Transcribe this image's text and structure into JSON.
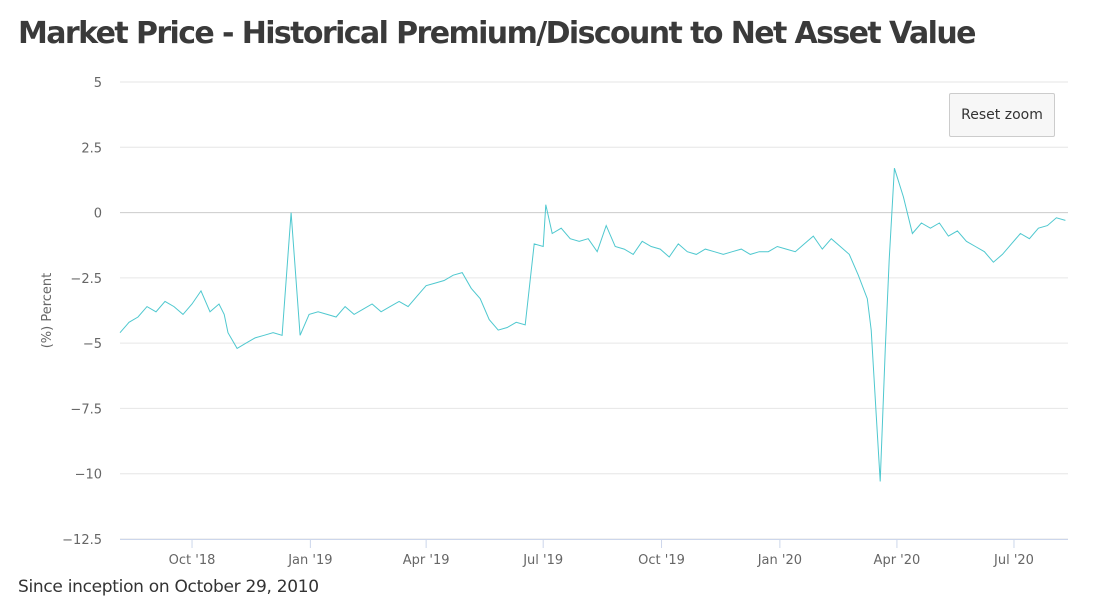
{
  "title": "Market Price - Historical Premium/Discount to Net Asset Value",
  "footnote": "Since inception on October 29, 2010",
  "reset_zoom_label": "Reset zoom",
  "colors": {
    "series": "#4fc8cf",
    "grid": "#e6e6e6",
    "zero_line": "#cccccc"
  },
  "chart_data": {
    "type": "line",
    "ylabel": "(%) Percent",
    "ylim": [
      -12.5,
      5
    ],
    "yticks": [
      5,
      2.5,
      0,
      -2.5,
      -5,
      -7.5,
      -10,
      -12.5
    ],
    "ytick_labels": [
      "5",
      "2.5",
      "0",
      "−2.5",
      "−5",
      "−7.5",
      "−10",
      "−12.5"
    ],
    "xlim": [
      "2018-08-06",
      "2020-08-12"
    ],
    "xticks": [
      "2018-10-01",
      "2019-01-01",
      "2019-04-01",
      "2019-07-01",
      "2019-10-01",
      "2020-01-01",
      "2020-04-01",
      "2020-07-01"
    ],
    "xtick_labels": [
      "Oct '18",
      "Jan '19",
      "Apr '19",
      "Jul '19",
      "Oct '19",
      "Jan '20",
      "Apr '20",
      "Jul '20"
    ],
    "grid": true,
    "legend": "none",
    "series": [
      {
        "x": [
          "2018-08-06",
          "2018-08-13",
          "2018-08-20",
          "2018-08-27",
          "2018-09-03",
          "2018-09-10",
          "2018-09-17",
          "2018-09-24",
          "2018-10-01",
          "2018-10-08",
          "2018-10-15",
          "2018-10-22",
          "2018-10-26",
          "2018-10-29",
          "2018-11-05",
          "2018-11-12",
          "2018-11-19",
          "2018-11-26",
          "2018-12-03",
          "2018-12-10",
          "2018-12-17",
          "2018-12-24",
          "2018-12-31",
          "2019-01-07",
          "2019-01-14",
          "2019-01-21",
          "2019-01-28",
          "2019-02-04",
          "2019-02-11",
          "2019-02-18",
          "2019-02-25",
          "2019-03-04",
          "2019-03-11",
          "2019-03-18",
          "2019-03-25",
          "2019-04-01",
          "2019-04-08",
          "2019-04-15",
          "2019-04-22",
          "2019-04-29",
          "2019-05-06",
          "2019-05-13",
          "2019-05-20",
          "2019-05-27",
          "2019-06-03",
          "2019-06-10",
          "2019-06-17",
          "2019-06-24",
          "2019-07-01",
          "2019-07-03",
          "2019-07-08",
          "2019-07-15",
          "2019-07-22",
          "2019-07-29",
          "2019-08-05",
          "2019-08-12",
          "2019-08-19",
          "2019-08-26",
          "2019-09-02",
          "2019-09-09",
          "2019-09-16",
          "2019-09-23",
          "2019-09-30",
          "2019-10-07",
          "2019-10-14",
          "2019-10-21",
          "2019-10-28",
          "2019-11-04",
          "2019-11-11",
          "2019-11-18",
          "2019-11-25",
          "2019-12-02",
          "2019-12-09",
          "2019-12-16",
          "2019-12-23",
          "2019-12-30",
          "2020-01-06",
          "2020-01-13",
          "2020-01-20",
          "2020-01-27",
          "2020-02-03",
          "2020-02-10",
          "2020-02-17",
          "2020-02-24",
          "2020-03-02",
          "2020-03-09",
          "2020-03-12",
          "2020-03-16",
          "2020-03-19",
          "2020-03-23",
          "2020-03-26",
          "2020-03-30",
          "2020-04-06",
          "2020-04-13",
          "2020-04-20",
          "2020-04-27",
          "2020-05-04",
          "2020-05-11",
          "2020-05-18",
          "2020-05-25",
          "2020-06-01",
          "2020-06-08",
          "2020-06-15",
          "2020-06-22",
          "2020-06-29",
          "2020-07-06",
          "2020-07-13",
          "2020-07-20",
          "2020-07-27",
          "2020-08-03",
          "2020-08-10"
        ],
        "y": [
          -4.6,
          -4.2,
          -4.0,
          -3.6,
          -3.8,
          -3.4,
          -3.6,
          -3.9,
          -3.5,
          -3.0,
          -3.8,
          -3.5,
          -3.9,
          -4.6,
          -5.2,
          -5.0,
          -4.8,
          -4.7,
          -4.6,
          -4.7,
          0.0,
          -4.7,
          -3.9,
          -3.8,
          -3.9,
          -4.0,
          -3.6,
          -3.9,
          -3.7,
          -3.5,
          -3.8,
          -3.6,
          -3.4,
          -3.6,
          -3.2,
          -2.8,
          -2.7,
          -2.6,
          -2.4,
          -2.3,
          -2.9,
          -3.3,
          -4.1,
          -4.5,
          -4.4,
          -4.2,
          -4.3,
          -1.2,
          -1.3,
          0.3,
          -0.8,
          -0.6,
          -1.0,
          -1.1,
          -1.0,
          -1.5,
          -0.5,
          -1.3,
          -1.4,
          -1.6,
          -1.1,
          -1.3,
          -1.4,
          -1.7,
          -1.2,
          -1.5,
          -1.6,
          -1.4,
          -1.5,
          -1.6,
          -1.5,
          -1.4,
          -1.6,
          -1.5,
          -1.5,
          -1.3,
          -1.4,
          -1.5,
          -1.2,
          -0.9,
          -1.4,
          -1.0,
          -1.3,
          -1.6,
          -2.4,
          -3.3,
          -4.5,
          -7.8,
          -10.3,
          -5.2,
          -1.8,
          1.7,
          0.6,
          -0.8,
          -0.4,
          -0.6,
          -0.4,
          -0.9,
          -0.7,
          -1.1,
          -1.3,
          -1.5,
          -1.9,
          -1.6,
          -1.2,
          -0.8,
          -1.0,
          -0.6,
          -0.5,
          -0.2,
          -0.3
        ]
      }
    ]
  }
}
